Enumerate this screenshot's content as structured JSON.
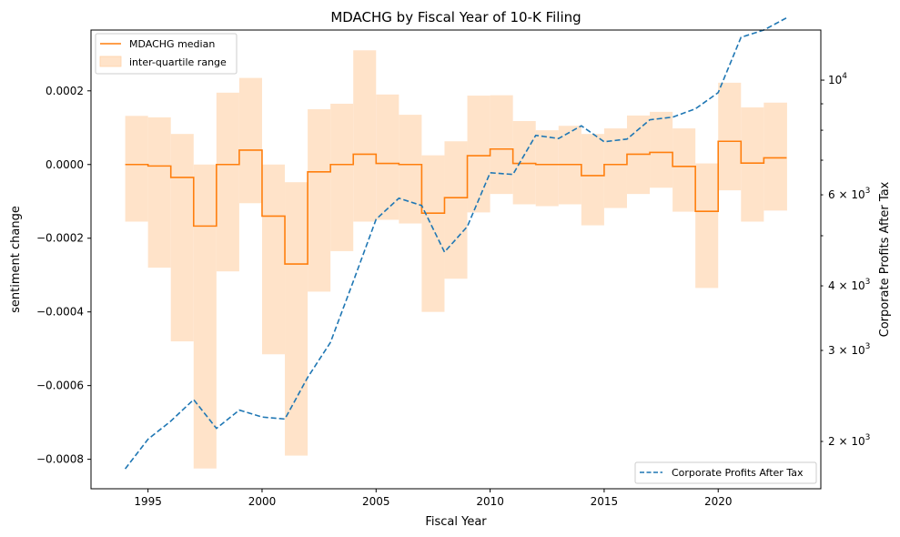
{
  "chart_data": {
    "type": "line",
    "title": "MDACHG by Fiscal Year of 10-K Filing",
    "xlabel": "Fiscal Year",
    "ylabel_left": "sentiment change",
    "ylabel_right": "Corporate Profits After Tax",
    "xlim": [
      1992.5,
      2024.5
    ],
    "ylim_left": [
      -0.00088,
      0.000365
    ],
    "ylim_right": [
      1620,
      12500
    ],
    "right_scale": "log",
    "x_ticks": [
      1995,
      2000,
      2005,
      2010,
      2015,
      2020
    ],
    "x_tick_labels": [
      "1995",
      "2000",
      "2005",
      "2010",
      "2015",
      "2020"
    ],
    "left_ticks": [
      0.0002,
      0.0,
      -0.0002,
      -0.0004,
      -0.0006,
      -0.0008
    ],
    "left_tick_labels": [
      "0.0002",
      "0.0000",
      "−0.0002",
      "−0.0004",
      "−0.0006",
      "−0.0008"
    ],
    "right_major_ticks": [
      10000
    ],
    "right_major_labels": [
      {
        "base": "10",
        "exp": "4"
      }
    ],
    "right_minor_ticks": [
      2000,
      3000,
      4000,
      6000
    ],
    "right_minor_labels": [
      {
        "coef": "2",
        "base": "10",
        "exp": "3"
      },
      {
        "coef": "3",
        "base": "10",
        "exp": "3"
      },
      {
        "coef": "4",
        "base": "10",
        "exp": "3"
      },
      {
        "coef": "6",
        "base": "10",
        "exp": "3"
      }
    ],
    "right_unlabeled_ticks": [
      5000,
      7000,
      8000,
      9000
    ],
    "legend_left": {
      "position": "upper-left",
      "entries": [
        {
          "label": "MDACHG median",
          "kind": "line"
        },
        {
          "label": "inter-quartile range",
          "kind": "patch"
        }
      ]
    },
    "legend_right": {
      "position": "lower-right",
      "entries": [
        {
          "label": "Corporate Profits After Tax",
          "kind": "dashed-line"
        }
      ]
    },
    "colors": {
      "median": "#ff7f0e",
      "iqr_fill": "#ffe3c9",
      "profits": "#1f77b4",
      "axis": "#000000"
    },
    "years": [
      1994,
      1995,
      1996,
      1997,
      1998,
      1999,
      2000,
      2001,
      2002,
      2003,
      2004,
      2005,
      2006,
      2007,
      2008,
      2009,
      2010,
      2011,
      2012,
      2013,
      2014,
      2015,
      2016,
      2017,
      2018,
      2019,
      2020,
      2021,
      2022,
      2023
    ],
    "series": [
      {
        "name": "MDACHG median",
        "axis": "left",
        "style": "step-post",
        "values": [
          0.0,
          -4e-06,
          -3.5e-05,
          -0.000167,
          0.0,
          3.9e-05,
          -0.00014,
          -0.00027,
          -2e-05,
          0.0,
          2.8e-05,
          3e-06,
          0.0,
          -0.000132,
          -9e-05,
          2.4e-05,
          4.2e-05,
          3e-06,
          0.0,
          0.0,
          -3e-05,
          0.0,
          2.8e-05,
          3.3e-05,
          -5e-06,
          -0.000127,
          6.3e-05,
          4e-06,
          1.8e-05,
          1.8e-05
        ]
      },
      {
        "name": "inter-quartile range",
        "axis": "left",
        "style": "step-fill",
        "lower": [
          -0.000155,
          -0.00028,
          -0.00048,
          -0.000825,
          -0.00029,
          -0.000105,
          -0.000515,
          -0.00079,
          -0.000345,
          -0.000235,
          -0.000155,
          -0.00015,
          -0.00016,
          -0.0004,
          -0.00031,
          -0.00013,
          -8e-05,
          -0.000108,
          -0.000113,
          -0.000108,
          -0.000165,
          -0.000118,
          -8e-05,
          -6.3e-05,
          -0.000128,
          -0.000335,
          -7e-05,
          -0.000155,
          -0.000125,
          -0.000125
        ],
        "upper": [
          0.000132,
          0.000128,
          8.3e-05,
          0.0,
          0.000195,
          0.000235,
          0.0,
          -4.8e-05,
          0.00015,
          0.000165,
          0.00031,
          0.00019,
          0.000135,
          2.5e-05,
          6.3e-05,
          0.000187,
          0.000188,
          0.000118,
          9.3e-05,
          0.000105,
          8.3e-05,
          9.8e-05,
          0.000133,
          0.000143,
          9.8e-05,
          3e-06,
          0.000222,
          0.000155,
          0.000168,
          0.000168
        ]
      },
      {
        "name": "Corporate Profits After Tax",
        "axis": "right",
        "style": "dashed",
        "values": [
          1770,
          2020,
          2190,
          2410,
          2120,
          2300,
          2230,
          2210,
          2660,
          3110,
          4080,
          5380,
          5910,
          5720,
          4650,
          5210,
          6620,
          6570,
          7820,
          7710,
          8160,
          7600,
          7690,
          8380,
          8480,
          8800,
          9460,
          12100,
          12500,
          13200
        ]
      }
    ]
  }
}
